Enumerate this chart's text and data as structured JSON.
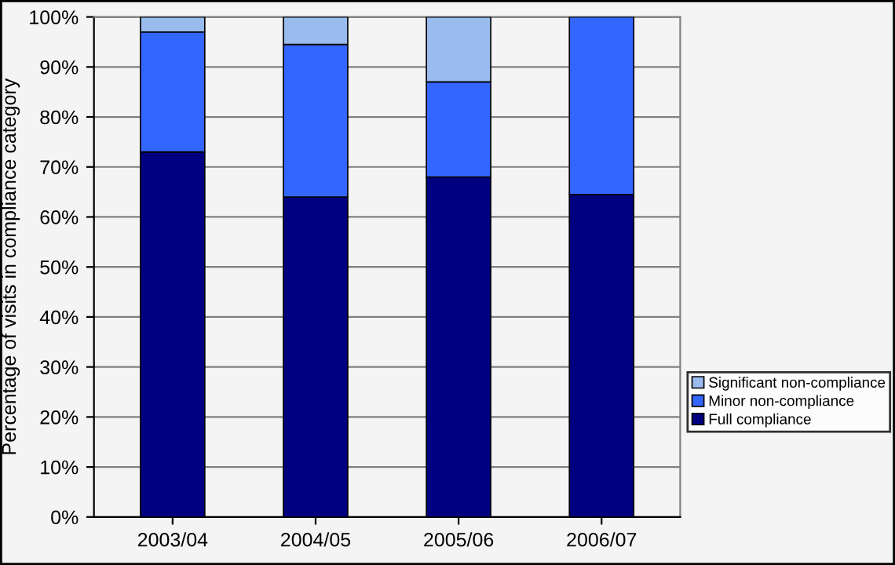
{
  "chart_data": {
    "type": "bar",
    "stacked": true,
    "ylabel": "Percentage of visits in compliance category",
    "categories": [
      "2003/04",
      "2004/05",
      "2005/06",
      "2006/07"
    ],
    "series": [
      {
        "name": "Full compliance",
        "color": "#000080",
        "values": [
          73,
          64,
          68,
          64.5
        ]
      },
      {
        "name": "Minor non-compliance",
        "color": "#3366ff",
        "values": [
          24,
          30.5,
          19,
          35.5
        ]
      },
      {
        "name": "Significant non-compliance",
        "color": "#99bbee",
        "values": [
          3,
          5.5,
          13,
          null
        ]
      }
    ],
    "ylim": [
      0,
      100
    ],
    "yticks": [
      {
        "value": 0,
        "label": "0%"
      },
      {
        "value": 10,
        "label": "10%"
      },
      {
        "value": 20,
        "label": "20%"
      },
      {
        "value": 30,
        "label": "30%"
      },
      {
        "value": 40,
        "label": "40%"
      },
      {
        "value": 50,
        "label": "50%"
      },
      {
        "value": 60,
        "label": "60%"
      },
      {
        "value": 70,
        "label": "70%"
      },
      {
        "value": 80,
        "label": "80%"
      },
      {
        "value": 90,
        "label": "90%"
      },
      {
        "value": 100,
        "label": "100%"
      }
    ],
    "grid": "y",
    "legend": "right"
  }
}
